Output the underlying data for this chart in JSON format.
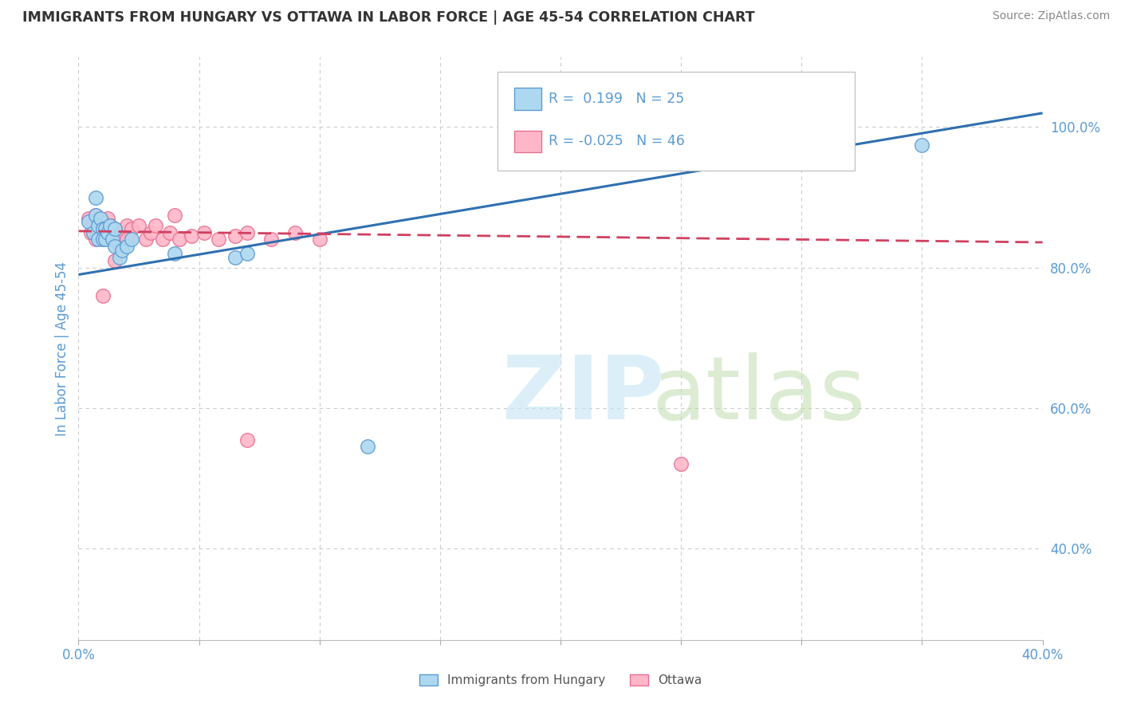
{
  "title": "IMMIGRANTS FROM HUNGARY VS OTTAWA IN LABOR FORCE | AGE 45-54 CORRELATION CHART",
  "source": "Source: ZipAtlas.com",
  "ylabel": "In Labor Force | Age 45-54",
  "xlim": [
    0.0,
    0.4
  ],
  "ylim": [
    0.27,
    1.1
  ],
  "xtick_positions": [
    0.0,
    0.05,
    0.1,
    0.15,
    0.2,
    0.25,
    0.3,
    0.35,
    0.4
  ],
  "xticklabels": [
    "0.0%",
    "",
    "",
    "",
    "",
    "",
    "",
    "",
    "40.0%"
  ],
  "ytick_right_labels": [
    "100.0%",
    "80.0%",
    "60.0%",
    "40.0%"
  ],
  "ytick_right_values": [
    1.0,
    0.8,
    0.6,
    0.4
  ],
  "hungary_face_color": "#ADD8F0",
  "hungary_edge_color": "#5B9BD5",
  "ottawa_face_color": "#FFB6C8",
  "ottawa_edge_color": "#E87090",
  "trend_hungary_color": "#3070B0",
  "trend_ottawa_color": "#D04060",
  "legend_R_hungary": "0.199",
  "legend_N_hungary": "25",
  "legend_R_ottawa": "-0.025",
  "legend_N_ottawa": "46",
  "background_color": "#FFFFFF",
  "grid_color": "#CCCCCC",
  "title_color": "#333333",
  "tick_label_color": "#5B9BD5",
  "source_color": "#888888",
  "hungary_x": [
    0.004,
    0.006,
    0.007,
    0.008,
    0.008,
    0.009,
    0.01,
    0.01,
    0.011,
    0.011,
    0.012,
    0.013,
    0.014,
    0.015,
    0.015,
    0.017,
    0.018,
    0.02,
    0.022,
    0.04,
    0.065,
    0.07,
    0.12,
    0.35,
    0.007
  ],
  "hungary_y": [
    0.865,
    0.85,
    0.875,
    0.86,
    0.84,
    0.87,
    0.855,
    0.84,
    0.855,
    0.84,
    0.85,
    0.86,
    0.84,
    0.855,
    0.83,
    0.815,
    0.825,
    0.83,
    0.84,
    0.82,
    0.815,
    0.82,
    0.545,
    0.975,
    0.9
  ],
  "ottawa_x": [
    0.004,
    0.005,
    0.006,
    0.007,
    0.007,
    0.008,
    0.008,
    0.009,
    0.009,
    0.01,
    0.01,
    0.011,
    0.011,
    0.012,
    0.013,
    0.013,
    0.014,
    0.015,
    0.016,
    0.017,
    0.018,
    0.019,
    0.02,
    0.021,
    0.022,
    0.025,
    0.028,
    0.03,
    0.032,
    0.035,
    0.038,
    0.042,
    0.047,
    0.052,
    0.058,
    0.065,
    0.07,
    0.08,
    0.09,
    0.1,
    0.04,
    0.07,
    0.25,
    0.01,
    0.015,
    0.02
  ],
  "ottawa_y": [
    0.87,
    0.85,
    0.86,
    0.84,
    0.875,
    0.855,
    0.87,
    0.845,
    0.86,
    0.85,
    0.865,
    0.84,
    0.855,
    0.87,
    0.845,
    0.86,
    0.84,
    0.855,
    0.845,
    0.83,
    0.85,
    0.845,
    0.86,
    0.84,
    0.855,
    0.86,
    0.84,
    0.85,
    0.86,
    0.84,
    0.85,
    0.84,
    0.845,
    0.85,
    0.84,
    0.845,
    0.555,
    0.84,
    0.85,
    0.84,
    0.875,
    0.85,
    0.52,
    0.76,
    0.81,
    0.84
  ],
  "trend_hungary_x0": 0.0,
  "trend_hungary_y0": 0.79,
  "trend_hungary_x1": 0.4,
  "trend_hungary_y1": 1.02,
  "trend_ottawa_x0": 0.0,
  "trend_ottawa_y0": 0.852,
  "trend_ottawa_x1": 0.4,
  "trend_ottawa_y1": 0.836
}
